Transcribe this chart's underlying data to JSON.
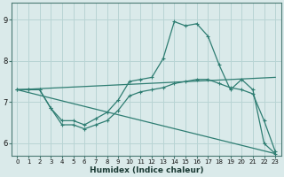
{
  "xlabel": "Humidex (Indice chaleur)",
  "background_color": "#daeaea",
  "grid_color": "#b8d4d4",
  "line_color": "#2e7d72",
  "xlim": [
    -0.5,
    23.5
  ],
  "ylim": [
    5.7,
    9.4
  ],
  "yticks": [
    6,
    7,
    8,
    9
  ],
  "xticks": [
    0,
    1,
    2,
    3,
    4,
    5,
    6,
    7,
    8,
    9,
    10,
    11,
    12,
    13,
    14,
    15,
    16,
    17,
    18,
    19,
    20,
    21,
    22,
    23
  ],
  "series_marked": [
    {
      "x": [
        0,
        1,
        2,
        3,
        4,
        5,
        6,
        7,
        8,
        9,
        10,
        11,
        12,
        13,
        14,
        15,
        16,
        17,
        18,
        19,
        20,
        21,
        22,
        23
      ],
      "y": [
        7.3,
        7.3,
        7.3,
        6.85,
        6.55,
        6.55,
        6.45,
        6.6,
        6.75,
        7.05,
        7.5,
        7.55,
        7.6,
        8.05,
        8.95,
        8.85,
        8.9,
        8.6,
        7.9,
        7.3,
        7.55,
        7.3,
        6.0,
        5.75
      ]
    },
    {
      "x": [
        0,
        1,
        2,
        3,
        4,
        5,
        6,
        7,
        8,
        9,
        10,
        11,
        12,
        13,
        14,
        15,
        16,
        17,
        18,
        19,
        20,
        21,
        22,
        23
      ],
      "y": [
        7.3,
        7.3,
        7.3,
        6.85,
        6.45,
        6.45,
        6.35,
        6.45,
        6.55,
        6.8,
        7.15,
        7.25,
        7.3,
        7.35,
        7.45,
        7.5,
        7.55,
        7.55,
        7.45,
        7.35,
        7.3,
        7.2,
        6.55,
        5.8
      ]
    }
  ],
  "series_lines": [
    {
      "x": [
        0,
        23
      ],
      "y": [
        7.3,
        7.6
      ]
    },
    {
      "x": [
        0,
        23
      ],
      "y": [
        7.3,
        5.75
      ]
    }
  ]
}
